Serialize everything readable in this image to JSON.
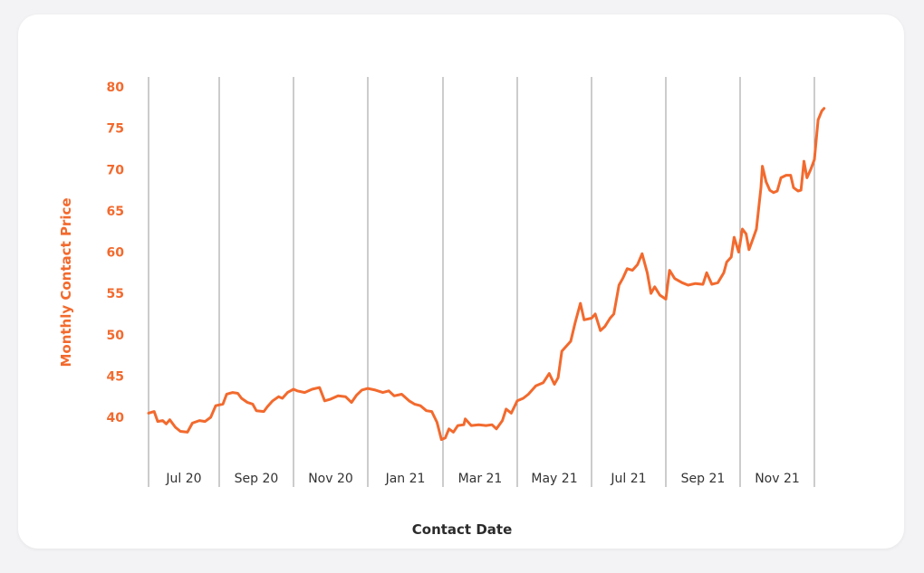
{
  "chart_data": {
    "type": "line",
    "xlabel": "Contact Date",
    "ylabel": "Monthly Contact Price",
    "ylim": [
      35,
      80
    ],
    "yticks": [
      40,
      45,
      50,
      55,
      60,
      65,
      70,
      75,
      80
    ],
    "x_categories": [
      "Jul 20",
      "Sep 20",
      "Nov 20",
      "Jan 21",
      "Mar 21",
      "May 21",
      "Jul 21",
      "Sep 21",
      "Nov 21"
    ],
    "grid": "vertical",
    "line_color": "#f26a2e",
    "series": [
      {
        "values": [
          [
            0.0,
            40.5
          ],
          [
            0.08,
            40.7
          ],
          [
            0.13,
            39.5
          ],
          [
            0.2,
            39.6
          ],
          [
            0.25,
            39.2
          ],
          [
            0.3,
            39.7
          ],
          [
            0.38,
            38.8
          ],
          [
            0.45,
            38.3
          ],
          [
            0.55,
            38.2
          ],
          [
            0.62,
            39.3
          ],
          [
            0.72,
            39.6
          ],
          [
            0.8,
            39.5
          ],
          [
            0.88,
            40.0
          ],
          [
            0.95,
            41.4
          ],
          [
            1.05,
            41.6
          ],
          [
            1.1,
            42.8
          ],
          [
            1.18,
            43.0
          ],
          [
            1.25,
            42.9
          ],
          [
            1.3,
            42.3
          ],
          [
            1.38,
            41.8
          ],
          [
            1.45,
            41.6
          ],
          [
            1.5,
            40.8
          ],
          [
            1.6,
            40.7
          ],
          [
            1.65,
            41.3
          ],
          [
            1.72,
            42.0
          ],
          [
            1.8,
            42.5
          ],
          [
            1.85,
            42.3
          ],
          [
            1.92,
            43.0
          ],
          [
            2.0,
            43.4
          ],
          [
            2.05,
            43.2
          ],
          [
            2.15,
            43.0
          ],
          [
            2.25,
            43.4
          ],
          [
            2.35,
            43.6
          ],
          [
            2.42,
            42.0
          ],
          [
            2.5,
            42.2
          ],
          [
            2.6,
            42.6
          ],
          [
            2.7,
            42.5
          ],
          [
            2.78,
            41.8
          ],
          [
            2.85,
            42.7
          ],
          [
            2.92,
            43.3
          ],
          [
            3.0,
            43.5
          ],
          [
            3.1,
            43.3
          ],
          [
            3.2,
            43.0
          ],
          [
            3.28,
            43.2
          ],
          [
            3.35,
            42.6
          ],
          [
            3.45,
            42.8
          ],
          [
            3.55,
            42.0
          ],
          [
            3.62,
            41.6
          ],
          [
            3.7,
            41.4
          ],
          [
            3.78,
            40.8
          ],
          [
            3.85,
            40.7
          ],
          [
            3.92,
            39.4
          ],
          [
            3.98,
            37.3
          ],
          [
            4.03,
            37.5
          ],
          [
            4.08,
            38.6
          ],
          [
            4.14,
            38.2
          ],
          [
            4.2,
            39.0
          ],
          [
            4.28,
            39.1
          ],
          [
            4.3,
            39.8
          ],
          [
            4.38,
            39.0
          ],
          [
            4.48,
            39.1
          ],
          [
            4.58,
            39.0
          ],
          [
            4.66,
            39.1
          ],
          [
            4.72,
            38.6
          ],
          [
            4.8,
            39.6
          ],
          [
            4.85,
            41.0
          ],
          [
            4.92,
            40.5
          ],
          [
            5.0,
            42.0
          ],
          [
            5.08,
            42.3
          ],
          [
            5.15,
            42.8
          ],
          [
            5.25,
            43.8
          ],
          [
            5.35,
            44.2
          ],
          [
            5.43,
            45.3
          ],
          [
            5.5,
            44.0
          ],
          [
            5.55,
            44.8
          ],
          [
            5.6,
            48.0
          ],
          [
            5.65,
            48.5
          ],
          [
            5.72,
            49.2
          ],
          [
            5.78,
            51.5
          ],
          [
            5.85,
            53.8
          ],
          [
            5.9,
            51.8
          ],
          [
            6.0,
            52.0
          ],
          [
            6.05,
            52.5
          ],
          [
            6.12,
            50.5
          ],
          [
            6.18,
            51.0
          ],
          [
            6.25,
            52.0
          ],
          [
            6.3,
            52.5
          ],
          [
            6.37,
            56.0
          ],
          [
            6.42,
            56.8
          ],
          [
            6.48,
            58.0
          ],
          [
            6.55,
            57.8
          ],
          [
            6.62,
            58.5
          ],
          [
            6.68,
            59.8
          ],
          [
            6.75,
            57.5
          ],
          [
            6.8,
            55.0
          ],
          [
            6.85,
            55.8
          ],
          [
            6.92,
            54.8
          ],
          [
            7.0,
            54.3
          ],
          [
            7.05,
            57.8
          ],
          [
            7.12,
            56.8
          ],
          [
            7.22,
            56.3
          ],
          [
            7.3,
            56.0
          ],
          [
            7.4,
            56.2
          ],
          [
            7.5,
            56.1
          ],
          [
            7.55,
            57.5
          ],
          [
            7.62,
            56.1
          ],
          [
            7.7,
            56.3
          ],
          [
            7.78,
            57.5
          ],
          [
            7.82,
            58.8
          ],
          [
            7.88,
            59.4
          ],
          [
            7.92,
            61.8
          ],
          [
            7.98,
            60.0
          ],
          [
            8.03,
            62.8
          ],
          [
            8.08,
            62.2
          ],
          [
            8.12,
            60.3
          ],
          [
            8.18,
            61.8
          ],
          [
            8.22,
            62.8
          ],
          [
            8.28,
            67.8
          ],
          [
            8.3,
            70.4
          ],
          [
            8.35,
            68.5
          ],
          [
            8.4,
            67.5
          ],
          [
            8.45,
            67.2
          ],
          [
            8.5,
            67.4
          ],
          [
            8.55,
            69.0
          ],
          [
            8.62,
            69.3
          ],
          [
            8.68,
            69.3
          ],
          [
            8.72,
            67.8
          ],
          [
            8.78,
            67.4
          ],
          [
            8.82,
            67.5
          ],
          [
            8.86,
            71.0
          ],
          [
            8.9,
            69.0
          ],
          [
            8.95,
            70.0
          ],
          [
            9.0,
            71.2
          ],
          [
            9.05,
            76.0
          ],
          [
            9.1,
            77.1
          ],
          [
            9.13,
            77.4
          ]
        ]
      }
    ]
  }
}
